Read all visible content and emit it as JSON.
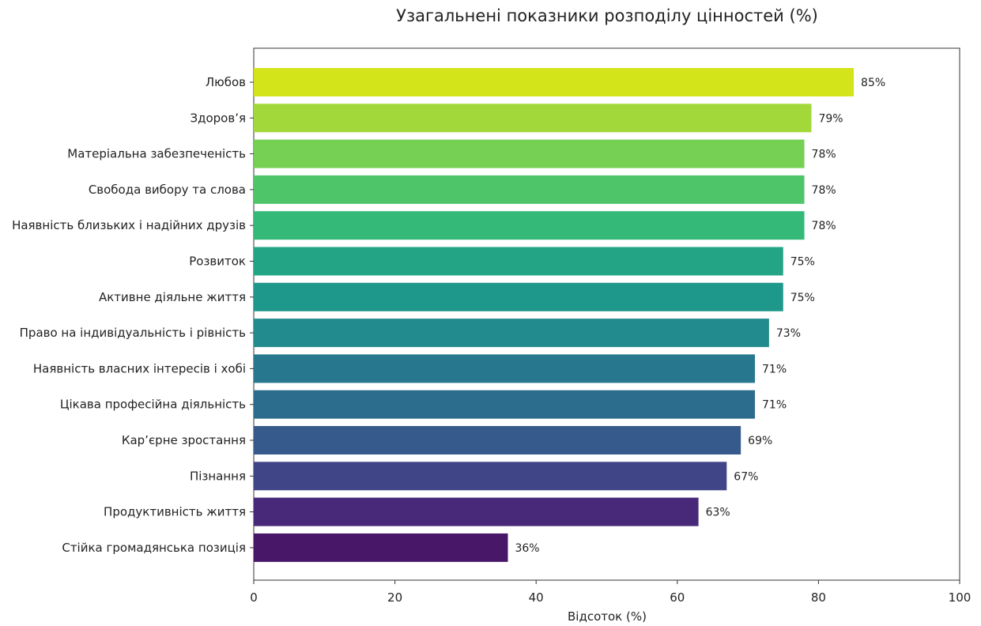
{
  "chart_data": {
    "type": "bar",
    "orientation": "horizontal",
    "title": "Узагальнені показники розподілу цінностей (%)",
    "xlabel": "Відсоток (%)",
    "ylabel": "",
    "xlim": [
      0,
      100
    ],
    "xticks": [
      0,
      20,
      40,
      60,
      80,
      100
    ],
    "grid": false,
    "categories": [
      "Любов",
      "Здоров’я",
      "Матеріальна забезпеченість",
      "Свобода вибору та слова",
      "Наявність близьких і надійних друзів",
      "Розвиток",
      "Активне діяльне життя",
      "Право на індивідуальність і рівність",
      "Наявність власних інтересів і хобі",
      "Цікава професійна діяльність",
      "Кар’єрне зростання",
      "Пізнання",
      "Продуктивність життя",
      "Стійка громадянська позиція"
    ],
    "values": [
      85,
      79,
      78,
      78,
      78,
      75,
      75,
      73,
      71,
      71,
      69,
      67,
      63,
      36
    ],
    "value_labels": [
      "85%",
      "79%",
      "78%",
      "78%",
      "78%",
      "75%",
      "75%",
      "73%",
      "71%",
      "71%",
      "69%",
      "67%",
      "63%",
      "36%"
    ],
    "colors": [
      "#d4e41b",
      "#a3d83a",
      "#75d054",
      "#4fc56a",
      "#34b978",
      "#23a485",
      "#1e988a",
      "#228b8d",
      "#27778e",
      "#2c6d8e",
      "#365a8c",
      "#404588",
      "#482979",
      "#481768"
    ]
  }
}
